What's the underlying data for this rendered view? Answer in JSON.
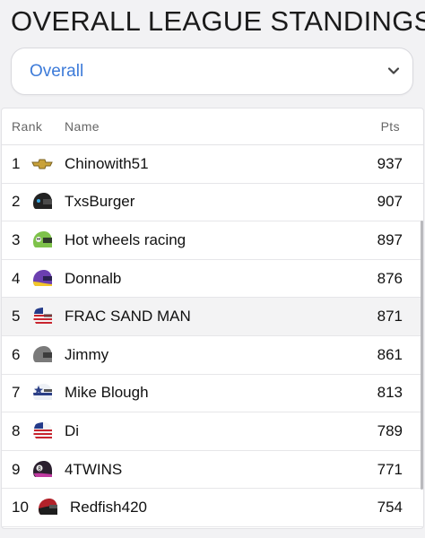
{
  "header": {
    "title": "OVERALL LEAGUE STANDINGS"
  },
  "filter": {
    "selected": "Overall"
  },
  "table": {
    "columns": [
      "Rank",
      "Name",
      "Pts"
    ],
    "rows": [
      {
        "rank": "1",
        "name": "Chinowith51",
        "pts": "937",
        "icon": "chevrolet-logo-icon"
      },
      {
        "rank": "2",
        "name": "TxsBurger",
        "pts": "907",
        "icon": "helmet-black-icon"
      },
      {
        "rank": "3",
        "name": "Hot wheels racing",
        "pts": "897",
        "icon": "helmet-green-skull-icon"
      },
      {
        "rank": "4",
        "name": "Donnalb",
        "pts": "876",
        "icon": "helmet-purple-yellow-icon"
      },
      {
        "rank": "5",
        "name": "FRAC SAND MAN",
        "pts": "871",
        "icon": "helmet-usa-flag-icon"
      },
      {
        "rank": "6",
        "name": "Jimmy",
        "pts": "861",
        "icon": "helmet-gray-icon"
      },
      {
        "rank": "7",
        "name": "Mike Blough",
        "pts": "813",
        "icon": "helmet-star-icon"
      },
      {
        "rank": "8",
        "name": "Di",
        "pts": "789",
        "icon": "helmet-usa-flag-icon"
      },
      {
        "rank": "9",
        "name": "4TWINS",
        "pts": "771",
        "icon": "helmet-eight-ball-icon"
      },
      {
        "rank": "10",
        "name": "Redfish420",
        "pts": "754",
        "icon": "helmet-red-black-icon"
      }
    ],
    "highlighted_rank": "5"
  },
  "colors": {
    "accent": "#3d7bd9"
  }
}
